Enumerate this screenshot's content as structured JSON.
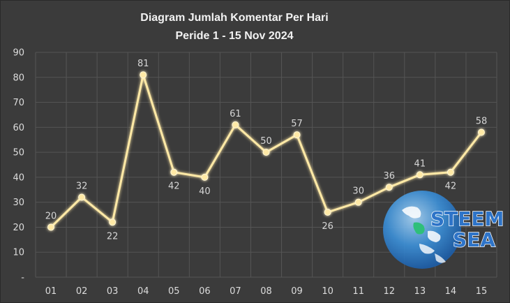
{
  "chart_data": {
    "type": "line",
    "title": "Diagram Jumlah Komentar Per Hari",
    "subtitle": "Peride 1 - 15 Nov 2024",
    "xlabel": "",
    "ylabel": "",
    "categories": [
      "01",
      "02",
      "03",
      "04",
      "05",
      "06",
      "07",
      "08",
      "09",
      "10",
      "11",
      "12",
      "13",
      "14",
      "15"
    ],
    "values": [
      20,
      32,
      22,
      81,
      42,
      40,
      61,
      50,
      57,
      26,
      30,
      36,
      41,
      42,
      58
    ],
    "y_tick_labels": [
      "-",
      "10",
      "20",
      "30",
      "40",
      "50",
      "60",
      "70",
      "80",
      "90"
    ],
    "ylim": [
      0,
      90
    ],
    "grid": true,
    "legend": "none",
    "data_labels": [
      "20",
      "32",
      "22",
      "81",
      "42",
      "40",
      "61",
      "50",
      "57",
      "26",
      "30",
      "36",
      "41",
      "42",
      "58"
    ],
    "label_positions": [
      "above",
      "above",
      "below",
      "above",
      "below",
      "below",
      "above",
      "above",
      "above",
      "below",
      "above",
      "above",
      "above",
      "below",
      "above"
    ],
    "colors": {
      "background": "#3b3b3b",
      "grid": "#555555",
      "line": "#ffe9a6",
      "marker": "#ffe9a6"
    }
  },
  "watermark": {
    "line1": "STEEM",
    "line2": "SEA",
    "icon": "globe-icon"
  }
}
